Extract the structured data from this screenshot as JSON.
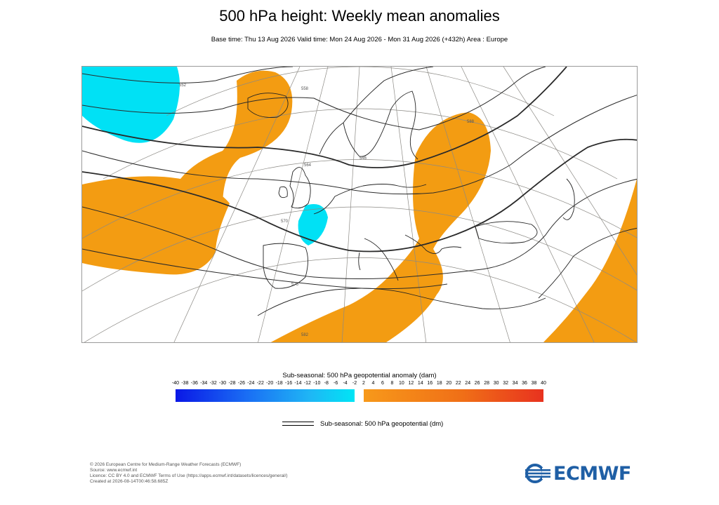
{
  "title": "500 hPa height: Weekly mean anomalies",
  "subtitle": "Base time: Thu 13 Aug 2026 Valid time: Mon 24 Aug 2026 - Mon 31 Aug 2026 (+432h) Area : Europe",
  "map": {
    "area": "Europe",
    "contour_labels": [
      "552",
      "558",
      "564",
      "570",
      "576",
      "582",
      "588",
      "546"
    ],
    "anomaly_colors": {
      "negative": "#00e1f5",
      "positive": "#f39c12"
    }
  },
  "colorbar": {
    "title": "Sub-seasonal: 500 hPa geopotential anomaly (dam)",
    "ticks": [
      "-40",
      "-38",
      "-36",
      "-34",
      "-32",
      "-30",
      "-28",
      "-26",
      "-24",
      "-22",
      "-20",
      "-18",
      "-16",
      "-14",
      "-12",
      "-10",
      "-8",
      "-6",
      "-4",
      "-2",
      "2",
      "4",
      "6",
      "8",
      "10",
      "12",
      "14",
      "16",
      "18",
      "20",
      "22",
      "24",
      "26",
      "28",
      "30",
      "32",
      "34",
      "36",
      "38",
      "40"
    ]
  },
  "legend": {
    "label": "Sub-seasonal: 500 hPa geopotential (dm)"
  },
  "footer": {
    "copyright": "© 2026 European Centre for Medium-Range Weather Forecasts (ECMWF)",
    "source": "Source: www.ecmwf.int",
    "licence": "Licence: CC BY 4.0 and ECMWF Terms of Use (https://apps.ecmwf.int/datasets/licences/general/)",
    "created": "Created at 2026-08-14T00:46:58.685Z"
  },
  "logo": {
    "text": "ECMWF",
    "icon": "ecmwf-logo-icon"
  }
}
